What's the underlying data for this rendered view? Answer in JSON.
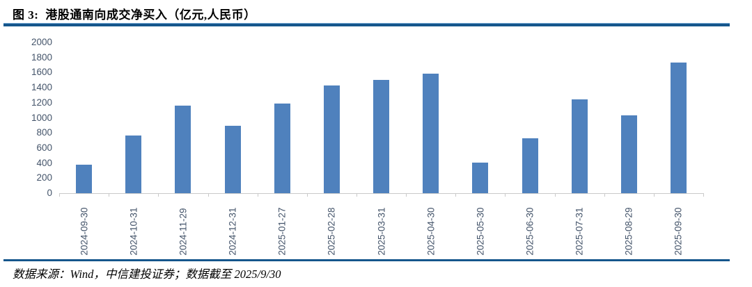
{
  "title": {
    "prefix": "图 3:",
    "text": "港股通南向成交净买入（亿元,人民币）"
  },
  "footer": {
    "source_note": "数据来源：Wind，中信建投证券；数据截至 2025/9/30"
  },
  "colors": {
    "bar": "#4f81bd",
    "rule": "#15568c",
    "rule_highlight": "#7fb2d9",
    "axis_text": "#44546a",
    "axis_line": "#c9c9c9"
  },
  "chart_data": {
    "type": "bar",
    "title": "港股通南向成交净买入（亿元,人民币）",
    "categories": [
      "2024-09-30",
      "2024-10-31",
      "2024-11-29",
      "2024-12-31",
      "2025-01-27",
      "2025-02-28",
      "2025-03-31",
      "2025-04-30",
      "2025-05-30",
      "2025-06-30",
      "2025-07-31",
      "2025-08-29",
      "2025-09-30"
    ],
    "values": [
      380,
      765,
      1165,
      895,
      1190,
      1430,
      1505,
      1585,
      410,
      730,
      1245,
      1035,
      1735
    ],
    "xlabel": "",
    "ylabel": "",
    "ylim": [
      0,
      2000
    ],
    "ytick_step": 200,
    "yticks": [
      0,
      200,
      400,
      600,
      800,
      1000,
      1200,
      1400,
      1600,
      1800,
      2000
    ],
    "grid": false,
    "legend_position": "none",
    "bar_color": "#4f81bd",
    "x_label_rotation": -90
  }
}
